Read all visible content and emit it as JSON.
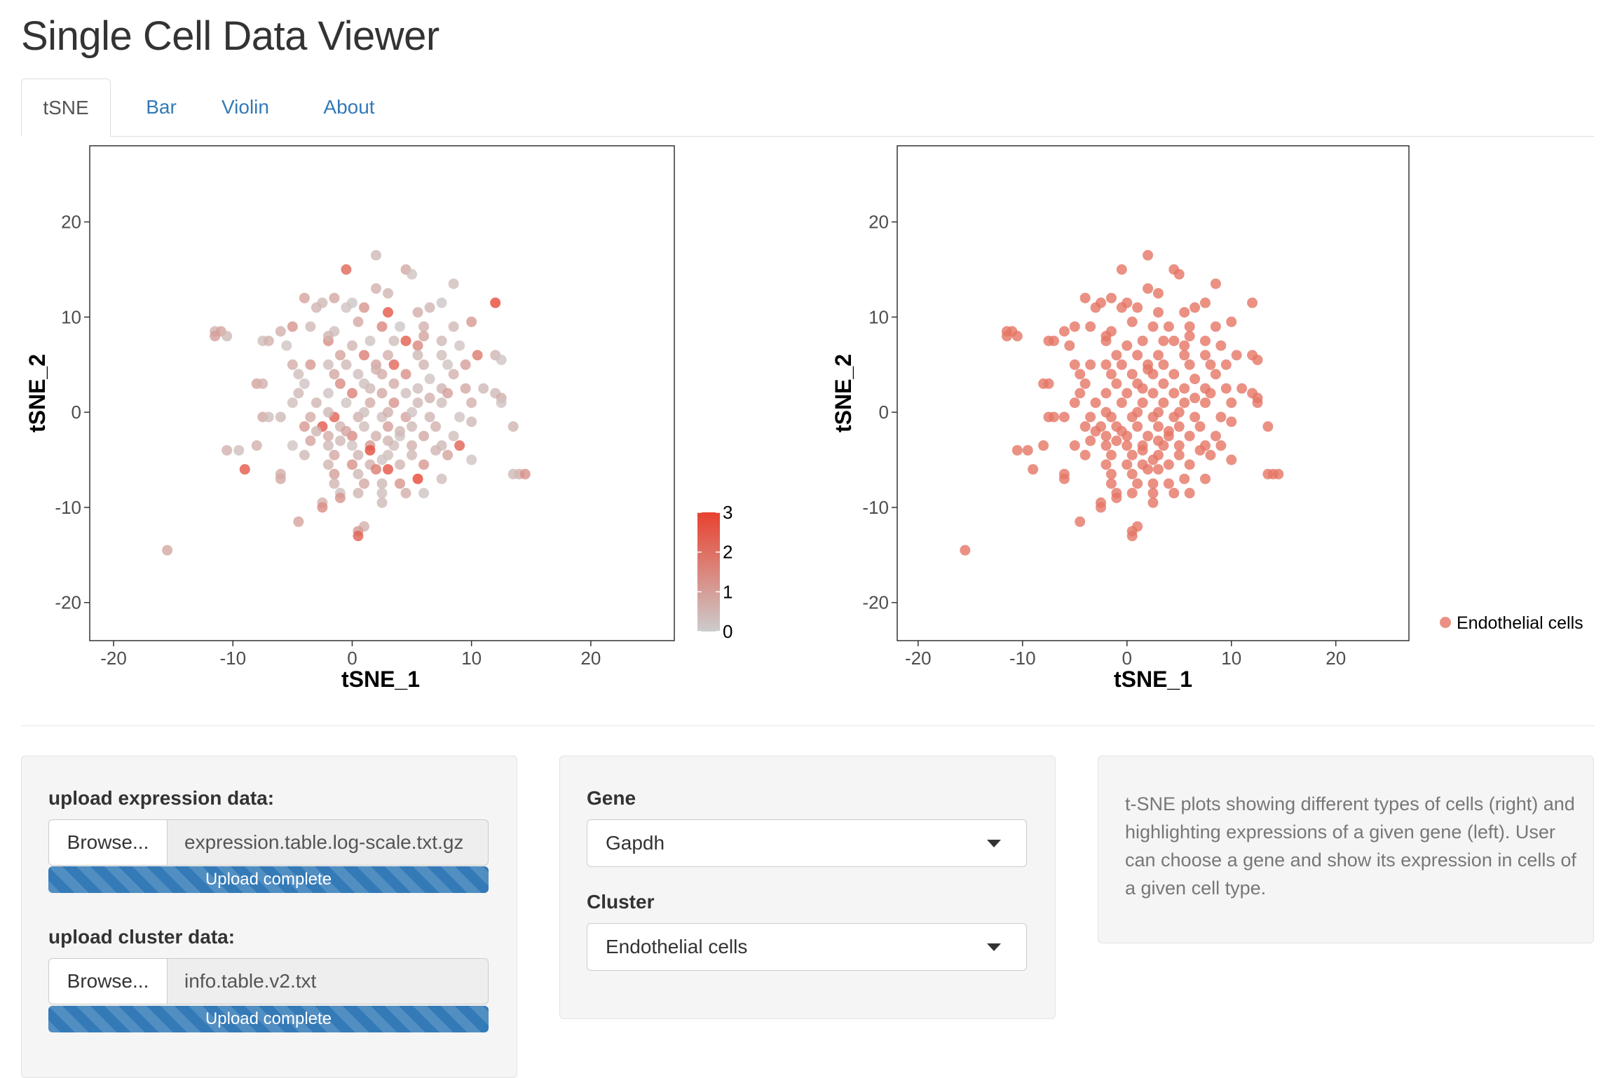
{
  "app": {
    "title": "Single Cell Data Viewer"
  },
  "tabs": [
    {
      "label": "tSNE",
      "active": true
    },
    {
      "label": "Bar",
      "active": false
    },
    {
      "label": "Violin",
      "active": false
    },
    {
      "label": "About",
      "active": false
    }
  ],
  "colors": {
    "accent": "#337ab7",
    "expr_low": "#cccccc",
    "expr_high": "#e8412f",
    "cluster_point": "#e57565"
  },
  "chart_data": [
    {
      "type": "scatter",
      "xlabel": "tSNE_1",
      "ylabel": "tSNE_2",
      "xlim": [
        -22,
        27
      ],
      "ylim": [
        -24,
        28
      ],
      "x_ticks": [
        -20,
        -10,
        0,
        10,
        20
      ],
      "y_ticks": [
        -20,
        -10,
        0,
        10,
        20
      ],
      "grid": false,
      "color_scale": {
        "ticks": [
          0,
          1,
          2,
          3
        ],
        "range": [
          0,
          3
        ],
        "placement": "right"
      },
      "points": [
        [
          2,
          16.5,
          0.4
        ],
        [
          4.5,
          15,
          0.8
        ],
        [
          -0.5,
          15,
          2.2
        ],
        [
          5,
          14.5,
          0.2
        ],
        [
          8.5,
          13.5,
          0.3
        ],
        [
          2,
          13,
          0.6
        ],
        [
          3,
          12.5,
          0.5
        ],
        [
          -1.5,
          12,
          0.8
        ],
        [
          -4,
          12,
          0.9
        ],
        [
          -2.5,
          11.5,
          0.4
        ],
        [
          0,
          11.5,
          0.1
        ],
        [
          -3,
          11,
          0.5
        ],
        [
          1,
          11,
          1.2
        ],
        [
          3,
          10.5,
          2.5
        ],
        [
          5.5,
          10.5,
          0.7
        ],
        [
          6.5,
          11,
          0.5
        ],
        [
          7.5,
          11.5,
          0.1
        ],
        [
          12,
          11.5,
          2.8
        ],
        [
          -0.5,
          11,
          0.2
        ],
        [
          -11.5,
          8.5,
          0.6
        ],
        [
          -11,
          8.5,
          0.9
        ],
        [
          -10.5,
          8,
          0.4
        ],
        [
          -11.5,
          8,
          1.0
        ],
        [
          -3.5,
          9,
          0.4
        ],
        [
          -5,
          9,
          1.2
        ],
        [
          -6,
          8.5,
          0.6
        ],
        [
          -1.5,
          8.5,
          0.3
        ],
        [
          0.5,
          9.5,
          0.8
        ],
        [
          2.5,
          9,
          1.5
        ],
        [
          4,
          9,
          0.1
        ],
        [
          6,
          9,
          0.6
        ],
        [
          8.5,
          9,
          0.4
        ],
        [
          10,
          9.5,
          1.1
        ],
        [
          -7.5,
          7.5,
          0.3
        ],
        [
          -7,
          7.5,
          0.6
        ],
        [
          -5.5,
          7,
          0.2
        ],
        [
          -2,
          7.5,
          1.4
        ],
        [
          0,
          7,
          0.5
        ],
        [
          1.5,
          7.5,
          0.2
        ],
        [
          3.5,
          7.5,
          0.3
        ],
        [
          4.5,
          7.5,
          2.4
        ],
        [
          5.5,
          7,
          1.5
        ],
        [
          7.5,
          7.5,
          0.4
        ],
        [
          9,
          7,
          0.2
        ],
        [
          -1,
          6,
          0.9
        ],
        [
          1,
          6,
          1.7
        ],
        [
          3,
          6,
          0.6
        ],
        [
          5.5,
          6,
          0.4
        ],
        [
          7.5,
          6,
          0.3
        ],
        [
          10.5,
          6,
          1.8
        ],
        [
          12,
          6,
          0.5
        ],
        [
          12.5,
          5.5,
          0.2
        ],
        [
          -5,
          5,
          0.7
        ],
        [
          -3.5,
          5,
          1.1
        ],
        [
          -2,
          5,
          0.3
        ],
        [
          -0.5,
          5,
          0.4
        ],
        [
          2,
          5,
          0.9
        ],
        [
          3.5,
          5,
          2.2
        ],
        [
          6,
          5,
          0.5
        ],
        [
          8,
          5,
          0.2
        ],
        [
          9.5,
          5,
          1.0
        ],
        [
          -4.5,
          4,
          0.3
        ],
        [
          -1.5,
          4,
          0.8
        ],
        [
          0.5,
          4,
          0.3
        ],
        [
          2.5,
          4,
          0.7
        ],
        [
          4.5,
          4,
          1.3
        ],
        [
          6.5,
          3.5,
          0.2
        ],
        [
          8.5,
          4,
          0.6
        ],
        [
          -8,
          3,
          0.9
        ],
        [
          -7.5,
          3,
          0.6
        ],
        [
          -4,
          3,
          0.2
        ],
        [
          -1,
          3,
          1.4
        ],
        [
          1.5,
          2.5,
          0.4
        ],
        [
          3.5,
          3,
          0.7
        ],
        [
          5.5,
          2.5,
          0.3
        ],
        [
          7.5,
          2.5,
          0.5
        ],
        [
          9.5,
          2.5,
          0.8
        ],
        [
          11,
          2.5,
          0.4
        ],
        [
          -4.5,
          2,
          0.4
        ],
        [
          -2,
          2,
          0.2
        ],
        [
          0,
          2,
          1.6
        ],
        [
          2.5,
          2,
          0.8
        ],
        [
          4.5,
          2,
          0.3
        ],
        [
          6.5,
          1.5,
          0.6
        ],
        [
          8,
          2,
          1.0
        ],
        [
          12,
          2,
          0.4
        ],
        [
          12.5,
          1.5,
          0.7
        ],
        [
          -5,
          1,
          0.3
        ],
        [
          -3,
          1,
          0.5
        ],
        [
          -0.5,
          1,
          0.2
        ],
        [
          1.5,
          1,
          0.7
        ],
        [
          3.5,
          1,
          1.2
        ],
        [
          5.5,
          1,
          0.4
        ],
        [
          7.5,
          1,
          0.3
        ],
        [
          10,
          1,
          0.6
        ],
        [
          12.5,
          1,
          0.2
        ],
        [
          -6,
          -0.5,
          0.4
        ],
        [
          -3.5,
          -0.5,
          0.7
        ],
        [
          -1.5,
          -0.5,
          2.3
        ],
        [
          0.5,
          -0.5,
          0.6
        ],
        [
          2.5,
          -0.5,
          0.3
        ],
        [
          4.5,
          -0.5,
          0.9
        ],
        [
          6.5,
          -0.5,
          0.5
        ],
        [
          9,
          -0.5,
          0.2
        ],
        [
          -7.5,
          -0.5,
          0.8
        ],
        [
          -7,
          -0.5,
          0.3
        ],
        [
          -4,
          -1.5,
          1.1
        ],
        [
          -2.5,
          -1.5,
          2.5
        ],
        [
          -1,
          -1.5,
          0.5
        ],
        [
          1,
          -1.5,
          0.3
        ],
        [
          3,
          -1.5,
          1.0
        ],
        [
          5,
          -1.5,
          0.4
        ],
        [
          7,
          -1.5,
          0.6
        ],
        [
          10,
          -1,
          0.4
        ],
        [
          13.5,
          -1.5,
          0.5
        ],
        [
          -2,
          -2.5,
          0.7
        ],
        [
          0,
          -2.5,
          1.4
        ],
        [
          2,
          -2.5,
          0.6
        ],
        [
          4,
          -2.5,
          0.2
        ],
        [
          6,
          -2.5,
          0.8
        ],
        [
          8.5,
          -2.5,
          0.3
        ],
        [
          -10.5,
          -4,
          0.6
        ],
        [
          -9.5,
          -4,
          0.3
        ],
        [
          -8,
          -3.5,
          0.6
        ],
        [
          -5,
          -3.5,
          0.2
        ],
        [
          -3.5,
          -3,
          0.9
        ],
        [
          -2,
          -3.5,
          0.4
        ],
        [
          0,
          -3.5,
          0.2
        ],
        [
          1.5,
          -3.5,
          1.1
        ],
        [
          3.5,
          -3.5,
          0.3
        ],
        [
          5,
          -3.5,
          0.6
        ],
        [
          7.5,
          -3.5,
          0.4
        ],
        [
          9,
          -3.5,
          2.3
        ],
        [
          -4,
          -4.5,
          0.4
        ],
        [
          -1.5,
          -4.5,
          0.8
        ],
        [
          0.5,
          -4.5,
          0.5
        ],
        [
          1.5,
          -4,
          2.7
        ],
        [
          3,
          -4.5,
          0.3
        ],
        [
          5,
          -4.5,
          0.4
        ],
        [
          7,
          -4,
          0.5
        ],
        [
          8,
          -4.5,
          0.9
        ],
        [
          10,
          -5,
          0.2
        ],
        [
          -2,
          -5.5,
          0.5
        ],
        [
          0,
          -5.5,
          1.3
        ],
        [
          1.5,
          -5.5,
          0.6
        ],
        [
          2.5,
          -5,
          0.2
        ],
        [
          4,
          -5.5,
          0.5
        ],
        [
          6,
          -5.5,
          1.1
        ],
        [
          -9,
          -6,
          2.5
        ],
        [
          -6,
          -6.5,
          0.7
        ],
        [
          -1.5,
          -6.5,
          1.0
        ],
        [
          0.5,
          -6.5,
          0.4
        ],
        [
          2,
          -6,
          1.7
        ],
        [
          3,
          -6,
          2.6
        ],
        [
          5.5,
          -7,
          2.9
        ],
        [
          7.5,
          -7,
          0.3
        ],
        [
          -1.5,
          -7.5,
          0.5
        ],
        [
          1,
          -7.5,
          0.8
        ],
        [
          2.5,
          -7.5,
          0.4
        ],
        [
          4,
          -7.5,
          1.2
        ],
        [
          14,
          -6.5,
          0.7
        ],
        [
          14.5,
          -6.5,
          1.3
        ],
        [
          13.5,
          -6.5,
          0.4
        ],
        [
          -6,
          -7,
          0.8
        ],
        [
          -1,
          -8.5,
          0.3
        ],
        [
          -1,
          -9,
          1.2
        ],
        [
          0.5,
          -8.5,
          0.5
        ],
        [
          2.5,
          -8.5,
          0.3
        ],
        [
          4.5,
          -8.5,
          0.7
        ],
        [
          6,
          -8.5,
          0.2
        ],
        [
          -2.5,
          -9.5,
          0.6
        ],
        [
          -2.5,
          -10,
          1.4
        ],
        [
          2.5,
          -9.5,
          0.4
        ],
        [
          -4.5,
          -11.5,
          0.9
        ],
        [
          1,
          -12,
          0.6
        ],
        [
          0.5,
          -12.5,
          1.1
        ],
        [
          0.5,
          -13,
          2.3
        ],
        [
          -15.5,
          -14.5,
          0.8
        ],
        [
          -2,
          0,
          0.4
        ],
        [
          1,
          0,
          0.3
        ],
        [
          3,
          0,
          0.6
        ],
        [
          5,
          0,
          0.2
        ],
        [
          -3,
          -2,
          0.5
        ],
        [
          -0.5,
          -2,
          0.9
        ],
        [
          4,
          -2,
          0.4
        ],
        [
          1,
          3,
          0.3
        ],
        [
          2,
          4.5,
          0.6
        ],
        [
          -2,
          8,
          0.5
        ],
        [
          6,
          8,
          0.9
        ],
        [
          3,
          -3,
          0.5
        ],
        [
          -1,
          -3,
          0.4
        ]
      ]
    },
    {
      "type": "scatter",
      "xlabel": "tSNE_1",
      "ylabel": "tSNE_2",
      "xlim": [
        -22,
        27
      ],
      "ylim": [
        -24,
        28
      ],
      "x_ticks": [
        -20,
        -10,
        0,
        10,
        20
      ],
      "y_ticks": [
        -20,
        -10,
        0,
        10,
        20
      ],
      "grid": false,
      "legend": {
        "entries": [
          "Endothelial cells"
        ],
        "placement": "right"
      },
      "points": "same coordinates as left plot"
    }
  ],
  "controls": {
    "expression_label": "upload expression data:",
    "expression_browse": "Browse...",
    "expression_file": "expression.table.log-scale.txt.gz",
    "expression_progress_label": "Upload complete",
    "expression_progress": 100,
    "cluster_label": "upload cluster data:",
    "cluster_browse": "Browse...",
    "cluster_file": "info.table.v2.txt",
    "cluster_progress_label": "Upload complete",
    "cluster_progress": 100,
    "gene_label": "Gene",
    "gene_value": "Gapdh",
    "cluster_select_label": "Cluster",
    "cluster_value": "Endothelial cells"
  },
  "description": "t-SNE plots showing different types of cells (right) and highlighting expressions of a given gene (left). User can choose a gene and show its expression in cells of a given cell type."
}
